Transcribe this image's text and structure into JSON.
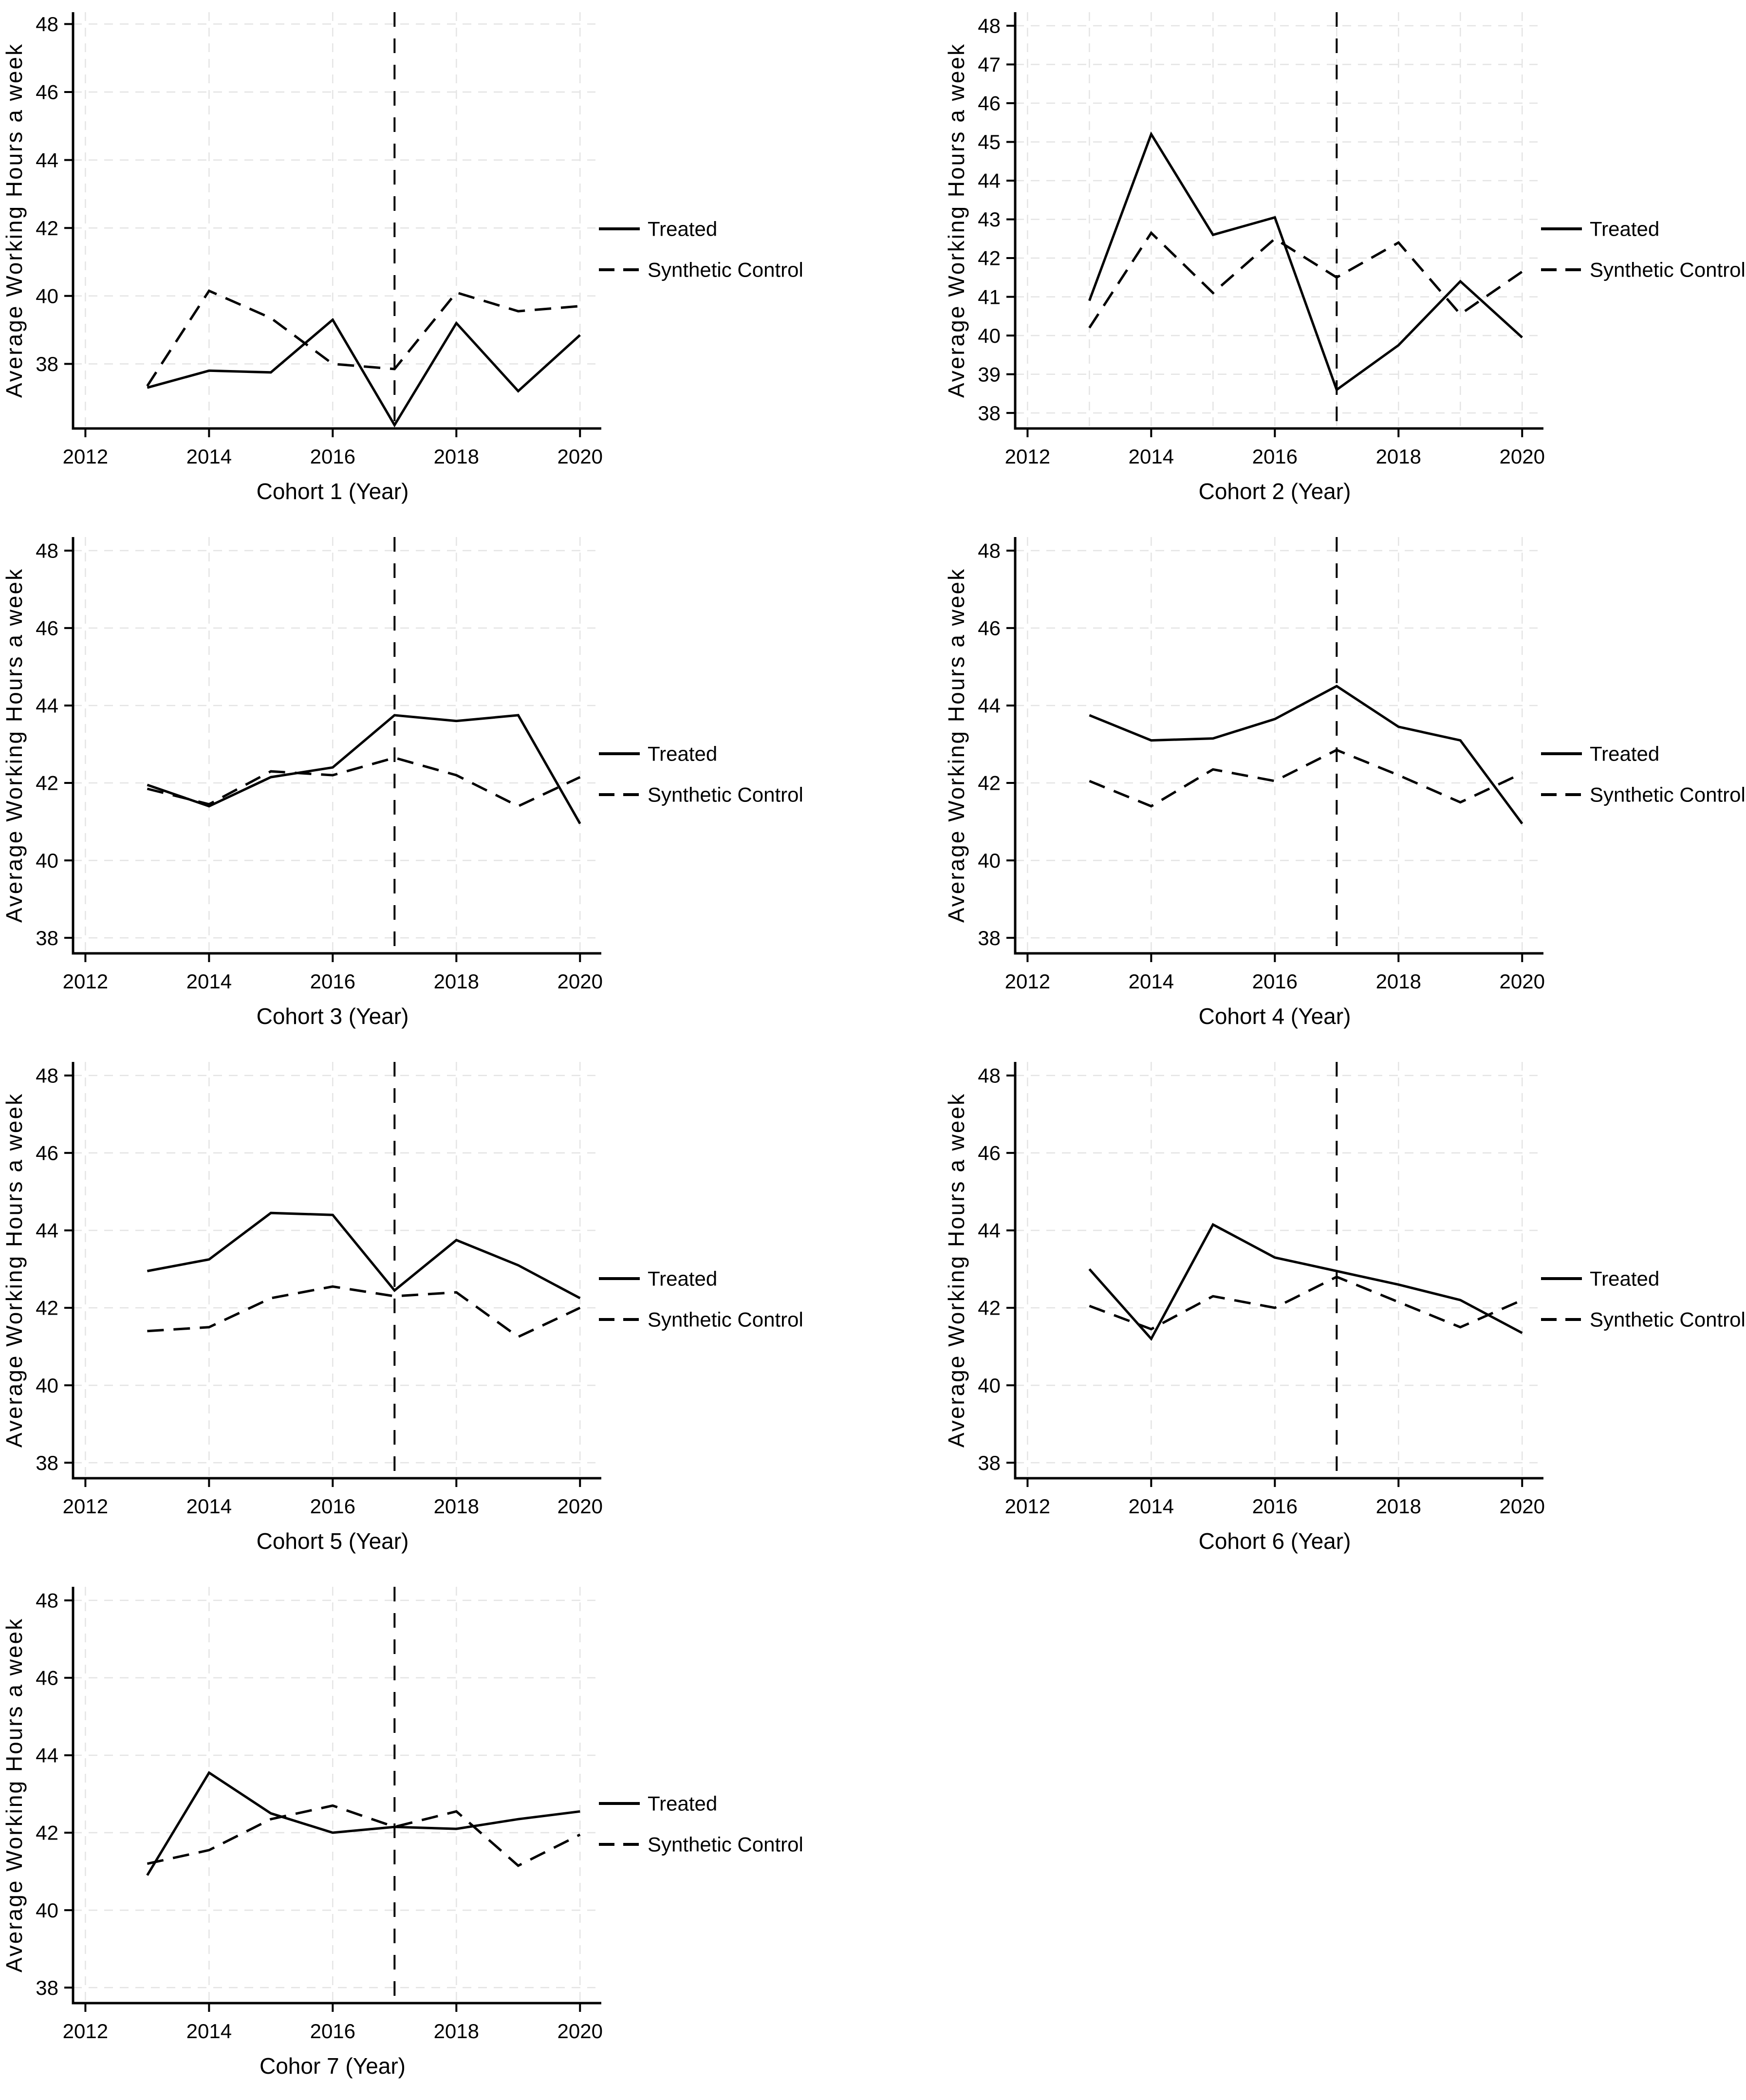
{
  "figure": {
    "description_labels": {
      "treated": "Treated",
      "synthetic_control": "Synthetic Control"
    }
  },
  "colors": {
    "line": "#000000",
    "grid": "#e4e4e4",
    "axis": "#000000",
    "background": "#ffffff"
  },
  "chart_data": [
    {
      "type": "line",
      "title": "",
      "xlabel": "Cohort 1 (Year)",
      "ylabel": "Average Working Hours a week",
      "x": [
        2013,
        2014,
        2015,
        2016,
        2017,
        2018,
        2019,
        2020
      ],
      "xticks": [
        2012,
        2014,
        2016,
        2018,
        2020
      ],
      "xgridlines": [
        2012,
        2014,
        2016,
        2018,
        2020
      ],
      "yticks": [
        38,
        40,
        42,
        44,
        46,
        48
      ],
      "ylim": [
        36.1,
        48.35
      ],
      "xlim": [
        2011.8,
        2020.25
      ],
      "treatment_year": 2017,
      "legend_position": "right",
      "legend": [
        "Treated",
        "Synthetic Control"
      ],
      "series": [
        {
          "name": "Treated",
          "line_style": "solid",
          "values": [
            37.3,
            37.8,
            37.75,
            39.3,
            36.2,
            39.2,
            37.2,
            38.85
          ]
        },
        {
          "name": "Synthetic Control",
          "line_style": "dashed",
          "values": [
            37.35,
            40.15,
            39.35,
            38.0,
            37.85,
            40.1,
            39.55,
            39.7
          ]
        }
      ]
    },
    {
      "type": "line",
      "title": "",
      "xlabel": "Cohort 2 (Year)",
      "ylabel": "Average Working Hours a week",
      "x": [
        2013,
        2014,
        2015,
        2016,
        2017,
        2018,
        2019,
        2020
      ],
      "xticks": [
        2012,
        2014,
        2016,
        2018,
        2020
      ],
      "xgridlines": [
        2012,
        2013,
        2014,
        2015,
        2016,
        2017,
        2018,
        2019,
        2020
      ],
      "yticks": [
        38,
        39,
        40,
        41,
        42,
        43,
        44,
        45,
        46,
        47,
        48
      ],
      "ylim": [
        37.6,
        48.35
      ],
      "xlim": [
        2011.8,
        2020.25
      ],
      "treatment_year": 2017,
      "legend_position": "right",
      "legend": [
        "Treated",
        "Synthetic Control"
      ],
      "series": [
        {
          "name": "Treated",
          "line_style": "solid",
          "values": [
            40.9,
            45.2,
            42.6,
            43.05,
            38.6,
            39.75,
            41.4,
            39.95
          ]
        },
        {
          "name": "Synthetic Control",
          "line_style": "dashed",
          "values": [
            40.2,
            42.65,
            41.1,
            42.5,
            41.5,
            42.4,
            40.55,
            41.65
          ]
        }
      ]
    },
    {
      "type": "line",
      "title": "",
      "xlabel": "Cohort 3 (Year)",
      "ylabel": "Average Working Hours a week",
      "x": [
        2013,
        2014,
        2015,
        2016,
        2017,
        2018,
        2019,
        2020
      ],
      "xticks": [
        2012,
        2014,
        2016,
        2018,
        2020
      ],
      "xgridlines": [
        2012,
        2014,
        2016,
        2018,
        2020
      ],
      "yticks": [
        38,
        40,
        42,
        44,
        46,
        48
      ],
      "ylim": [
        37.6,
        48.35
      ],
      "xlim": [
        2011.8,
        2020.25
      ],
      "treatment_year": 2017,
      "legend_position": "right",
      "legend": [
        "Treated",
        "Synthetic Control"
      ],
      "series": [
        {
          "name": "Treated",
          "line_style": "solid",
          "values": [
            41.95,
            41.4,
            42.15,
            42.4,
            43.75,
            43.6,
            43.75,
            40.95
          ]
        },
        {
          "name": "Synthetic Control",
          "line_style": "dashed",
          "values": [
            41.85,
            41.45,
            42.3,
            42.2,
            42.65,
            42.2,
            41.4,
            42.15
          ]
        }
      ]
    },
    {
      "type": "line",
      "title": "",
      "xlabel": "Cohort 4 (Year)",
      "ylabel": "Average Working Hours a week",
      "x": [
        2013,
        2014,
        2015,
        2016,
        2017,
        2018,
        2019,
        2020
      ],
      "xticks": [
        2012,
        2014,
        2016,
        2018,
        2020
      ],
      "xgridlines": [
        2012,
        2014,
        2016,
        2018,
        2020
      ],
      "yticks": [
        38,
        40,
        42,
        44,
        46,
        48
      ],
      "ylim": [
        37.6,
        48.35
      ],
      "xlim": [
        2011.8,
        2020.25
      ],
      "treatment_year": 2017,
      "legend_position": "right",
      "legend": [
        "Treated",
        "Synthetic Control"
      ],
      "series": [
        {
          "name": "Treated",
          "line_style": "solid",
          "values": [
            43.75,
            43.1,
            43.15,
            43.65,
            44.5,
            43.45,
            43.1,
            40.95
          ]
        },
        {
          "name": "Synthetic Control",
          "line_style": "dashed",
          "values": [
            42.05,
            41.4,
            42.35,
            42.05,
            42.85,
            42.2,
            41.5,
            42.25
          ]
        }
      ]
    },
    {
      "type": "line",
      "title": "",
      "xlabel": "Cohort 5 (Year)",
      "ylabel": "Average Working Hours a week",
      "x": [
        2013,
        2014,
        2015,
        2016,
        2017,
        2018,
        2019,
        2020
      ],
      "xticks": [
        2012,
        2014,
        2016,
        2018,
        2020
      ],
      "xgridlines": [
        2012,
        2014,
        2016,
        2018,
        2020
      ],
      "yticks": [
        38,
        40,
        42,
        44,
        46,
        48
      ],
      "ylim": [
        37.6,
        48.35
      ],
      "xlim": [
        2011.8,
        2020.25
      ],
      "treatment_year": 2017,
      "legend_position": "right",
      "legend": [
        "Treated",
        "Synthetic Control"
      ],
      "series": [
        {
          "name": "Treated",
          "line_style": "solid",
          "values": [
            42.95,
            43.25,
            44.45,
            44.4,
            42.45,
            43.75,
            43.1,
            42.25
          ]
        },
        {
          "name": "Synthetic Control",
          "line_style": "dashed",
          "values": [
            41.4,
            41.5,
            42.25,
            42.55,
            42.3,
            42.4,
            41.25,
            42.0
          ]
        }
      ]
    },
    {
      "type": "line",
      "title": "",
      "xlabel": "Cohort 6 (Year)",
      "ylabel": "Average Working Hours a week",
      "x": [
        2013,
        2014,
        2015,
        2016,
        2017,
        2018,
        2019,
        2020
      ],
      "xticks": [
        2012,
        2014,
        2016,
        2018,
        2020
      ],
      "xgridlines": [
        2012,
        2014,
        2016,
        2018,
        2020
      ],
      "yticks": [
        38,
        40,
        42,
        44,
        46,
        48
      ],
      "ylim": [
        37.6,
        48.35
      ],
      "xlim": [
        2011.8,
        2020.25
      ],
      "treatment_year": 2017,
      "legend_position": "right",
      "legend": [
        "Treated",
        "Synthetic Control"
      ],
      "series": [
        {
          "name": "Treated",
          "line_style": "solid",
          "values": [
            43.0,
            41.2,
            44.15,
            43.3,
            42.95,
            42.6,
            42.2,
            41.35
          ]
        },
        {
          "name": "Synthetic Control",
          "line_style": "dashed",
          "values": [
            42.05,
            41.45,
            42.3,
            42.0,
            42.8,
            42.15,
            41.5,
            42.2
          ]
        }
      ]
    },
    {
      "type": "line",
      "title": "",
      "xlabel": "Cohor 7 (Year)",
      "ylabel": "Average Working Hours a week",
      "x": [
        2013,
        2014,
        2015,
        2016,
        2017,
        2018,
        2019,
        2020
      ],
      "xticks": [
        2012,
        2014,
        2016,
        2018,
        2020
      ],
      "xgridlines": [
        2012,
        2014,
        2016,
        2018,
        2020
      ],
      "yticks": [
        38,
        40,
        42,
        44,
        46,
        48
      ],
      "ylim": [
        37.6,
        48.35
      ],
      "xlim": [
        2011.8,
        2020.25
      ],
      "treatment_year": 2017,
      "legend_position": "right",
      "legend": [
        "Treated",
        "Synthetic Control"
      ],
      "series": [
        {
          "name": "Treated",
          "line_style": "solid",
          "values": [
            40.9,
            43.55,
            42.5,
            42.0,
            42.15,
            42.1,
            42.35,
            42.55
          ]
        },
        {
          "name": "Synthetic Control",
          "line_style": "dashed",
          "values": [
            41.2,
            41.55,
            42.35,
            42.7,
            42.15,
            42.55,
            41.15,
            41.95
          ]
        }
      ]
    }
  ]
}
